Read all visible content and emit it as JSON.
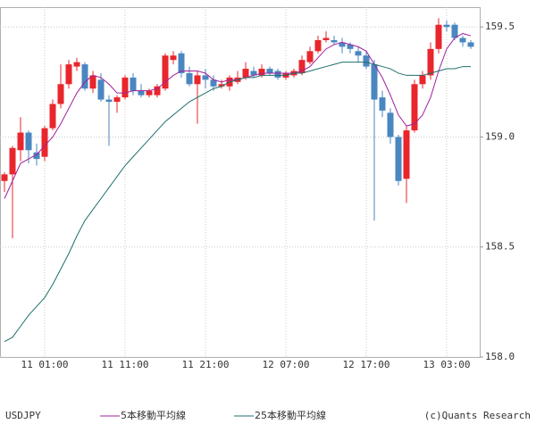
{
  "chart_data": {
    "type": "candlestick",
    "title": "USDJPY",
    "credit": "(c)Quants Research",
    "categories": [
      null,
      null,
      null,
      null,
      null,
      "11 01:00",
      null,
      null,
      null,
      null,
      null,
      null,
      null,
      null,
      null,
      "11 11:00",
      null,
      null,
      null,
      null,
      null,
      null,
      null,
      null,
      null,
      "11 21:00",
      null,
      null,
      null,
      null,
      null,
      null,
      null,
      null,
      null,
      "12 07:00",
      null,
      null,
      null,
      null,
      null,
      null,
      null,
      null,
      null,
      "12 17:00",
      null,
      null,
      null,
      null,
      null,
      null,
      null,
      null,
      null,
      "13 03:00",
      null,
      null,
      null
    ],
    "up_color": "#e8262c",
    "down_color": "#4a86c0",
    "candles": {
      "open": [
        158.8,
        158.83,
        158.94,
        159.02,
        158.93,
        158.91,
        159.04,
        159.15,
        159.24,
        159.32,
        159.33,
        159.22,
        159.26,
        159.17,
        159.16,
        159.18,
        159.27,
        159.21,
        159.19,
        159.19,
        159.22,
        159.35,
        159.38,
        159.29,
        159.24,
        159.28,
        159.26,
        159.23,
        159.23,
        159.25,
        159.27,
        159.3,
        159.28,
        159.31,
        159.3,
        159.27,
        159.28,
        159.29,
        159.34,
        159.39,
        159.44,
        159.44,
        159.43,
        159.42,
        159.39,
        159.37,
        159.33,
        159.18,
        159.11,
        159.0,
        158.81,
        159.03,
        159.24,
        159.28,
        159.4,
        159.51,
        159.51,
        159.45,
        159.43
      ],
      "high": [
        158.84,
        158.96,
        159.09,
        159.03,
        158.97,
        159.05,
        159.17,
        159.33,
        159.35,
        159.36,
        159.34,
        159.3,
        159.29,
        159.19,
        159.19,
        159.28,
        159.29,
        159.24,
        159.22,
        159.24,
        159.38,
        159.39,
        159.39,
        159.32,
        159.3,
        159.31,
        159.28,
        159.26,
        159.28,
        159.3,
        159.34,
        159.32,
        159.33,
        159.32,
        159.31,
        159.3,
        159.31,
        159.37,
        159.41,
        159.46,
        159.48,
        159.46,
        159.45,
        159.43,
        159.41,
        159.39,
        159.35,
        159.21,
        159.13,
        159.01,
        159.05,
        159.26,
        159.3,
        159.43,
        159.54,
        159.53,
        159.52,
        159.46,
        159.44
      ],
      "low": [
        158.75,
        158.54,
        158.89,
        158.88,
        158.87,
        158.89,
        159.03,
        159.13,
        159.22,
        159.3,
        159.21,
        159.2,
        159.16,
        158.96,
        159.11,
        159.17,
        159.19,
        159.18,
        159.18,
        159.18,
        159.21,
        159.33,
        159.27,
        159.23,
        159.06,
        159.22,
        159.21,
        159.22,
        159.21,
        159.24,
        159.26,
        159.27,
        159.27,
        159.28,
        159.26,
        159.26,
        159.27,
        159.28,
        159.33,
        159.38,
        159.43,
        159.42,
        159.38,
        159.38,
        159.34,
        159.31,
        158.62,
        159.09,
        158.97,
        158.78,
        158.7,
        159.02,
        159.22,
        159.26,
        159.38,
        159.48,
        159.44,
        159.41,
        159.4
      ],
      "close": [
        158.83,
        158.95,
        159.02,
        158.94,
        158.9,
        159.04,
        159.15,
        159.24,
        159.33,
        159.34,
        159.22,
        159.28,
        159.17,
        159.16,
        159.18,
        159.27,
        159.21,
        159.19,
        159.21,
        159.23,
        159.37,
        159.37,
        159.29,
        159.24,
        159.28,
        159.26,
        159.23,
        159.24,
        159.27,
        159.27,
        159.31,
        159.28,
        159.31,
        159.29,
        159.27,
        159.29,
        159.3,
        159.35,
        159.39,
        159.44,
        159.45,
        159.43,
        159.41,
        159.4,
        159.37,
        159.32,
        159.17,
        159.12,
        159.0,
        158.8,
        159.03,
        159.24,
        159.28,
        159.4,
        159.51,
        159.5,
        159.45,
        159.43,
        159.41
      ]
    },
    "series": [
      {
        "name": "5本移動平均線",
        "color": "#a0209c",
        "values": [
          158.72,
          158.8,
          158.88,
          158.9,
          158.92,
          158.96,
          159.0,
          159.06,
          159.13,
          159.2,
          159.25,
          159.28,
          159.27,
          159.24,
          159.2,
          159.2,
          159.21,
          159.21,
          159.21,
          159.22,
          159.25,
          159.28,
          159.3,
          159.3,
          159.3,
          159.29,
          159.26,
          159.25,
          159.26,
          159.26,
          159.27,
          159.28,
          159.29,
          159.29,
          159.29,
          159.29,
          159.29,
          159.3,
          159.32,
          159.36,
          159.4,
          159.42,
          159.43,
          159.42,
          159.41,
          159.39,
          159.33,
          159.27,
          159.19,
          159.1,
          159.05,
          159.06,
          159.1,
          159.18,
          159.3,
          159.4,
          159.45,
          159.47,
          159.46
        ]
      },
      {
        "name": "25本移動平均線",
        "color": "#1f6f6c",
        "values": [
          158.07,
          158.09,
          158.14,
          158.19,
          158.23,
          158.27,
          158.33,
          158.4,
          158.47,
          158.55,
          158.62,
          158.67,
          158.72,
          158.77,
          158.82,
          158.87,
          158.91,
          158.95,
          158.99,
          159.03,
          159.07,
          159.1,
          159.13,
          159.16,
          159.18,
          159.2,
          159.22,
          159.23,
          159.25,
          159.26,
          159.27,
          159.27,
          159.28,
          159.28,
          159.28,
          159.28,
          159.29,
          159.29,
          159.3,
          159.31,
          159.32,
          159.33,
          159.34,
          159.34,
          159.34,
          159.34,
          159.33,
          159.32,
          159.31,
          159.29,
          159.28,
          159.28,
          159.28,
          159.29,
          159.3,
          159.31,
          159.31,
          159.32,
          159.32
        ]
      }
    ],
    "ylim": [
      158.0,
      159.59
    ],
    "yticks": [
      {
        "value": 158.0,
        "label": "158.0"
      },
      158.5,
      {
        "value": 159.0,
        "label": "159.0"
      },
      159.5
    ],
    "grid": true
  }
}
